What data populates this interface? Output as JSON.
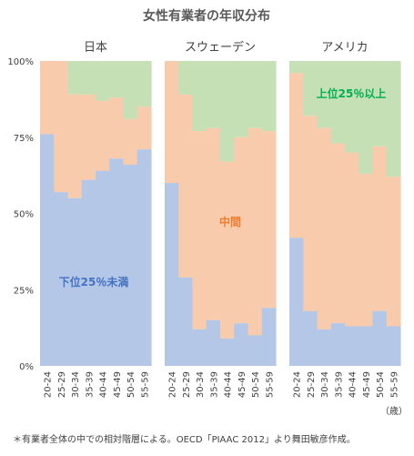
{
  "chart_data": {
    "type": "area",
    "title": "女性有業者の年収分布",
    "x_unit": "（歳）",
    "note": "＊有業者全体の中での相対階層による。OECD「PIAAC 2012」より舞田敏彦作成。",
    "categories": [
      "20-24",
      "25-29",
      "30-34",
      "35-39",
      "40-44",
      "45-49",
      "50-54",
      "55-59"
    ],
    "y_ticks": [
      "0%",
      "25%",
      "50%",
      "75%",
      "100%"
    ],
    "ylim": [
      0,
      100
    ],
    "colors": {
      "bottom": "#b4c7e7",
      "middle": "#f8cbad",
      "top": "#c5e0b4"
    },
    "band_labels": {
      "bottom": {
        "text": "下位25％未満",
        "color": "#4472c4"
      },
      "middle": {
        "text": "中間",
        "color": "#ed7d31"
      },
      "top": {
        "text": "上位25％以上",
        "color": "#00b050"
      }
    },
    "panels": [
      {
        "name": "日本",
        "bottom_pct": [
          76,
          57,
          55,
          61,
          64,
          68,
          66,
          71
        ],
        "bottom_middle_cumulative_pct": [
          100,
          100,
          89,
          89,
          87,
          88,
          81,
          85
        ]
      },
      {
        "name": "スウェーデン",
        "bottom_pct": [
          60,
          29,
          12,
          15,
          9,
          14,
          10,
          19
        ],
        "bottom_middle_cumulative_pct": [
          100,
          89,
          77,
          78,
          67,
          75,
          78,
          77
        ]
      },
      {
        "name": "アメリカ",
        "bottom_pct": [
          42,
          18,
          12,
          14,
          13,
          13,
          18,
          13
        ],
        "bottom_middle_cumulative_pct": [
          96,
          82,
          78,
          73,
          70,
          63,
          72,
          62
        ]
      }
    ]
  }
}
